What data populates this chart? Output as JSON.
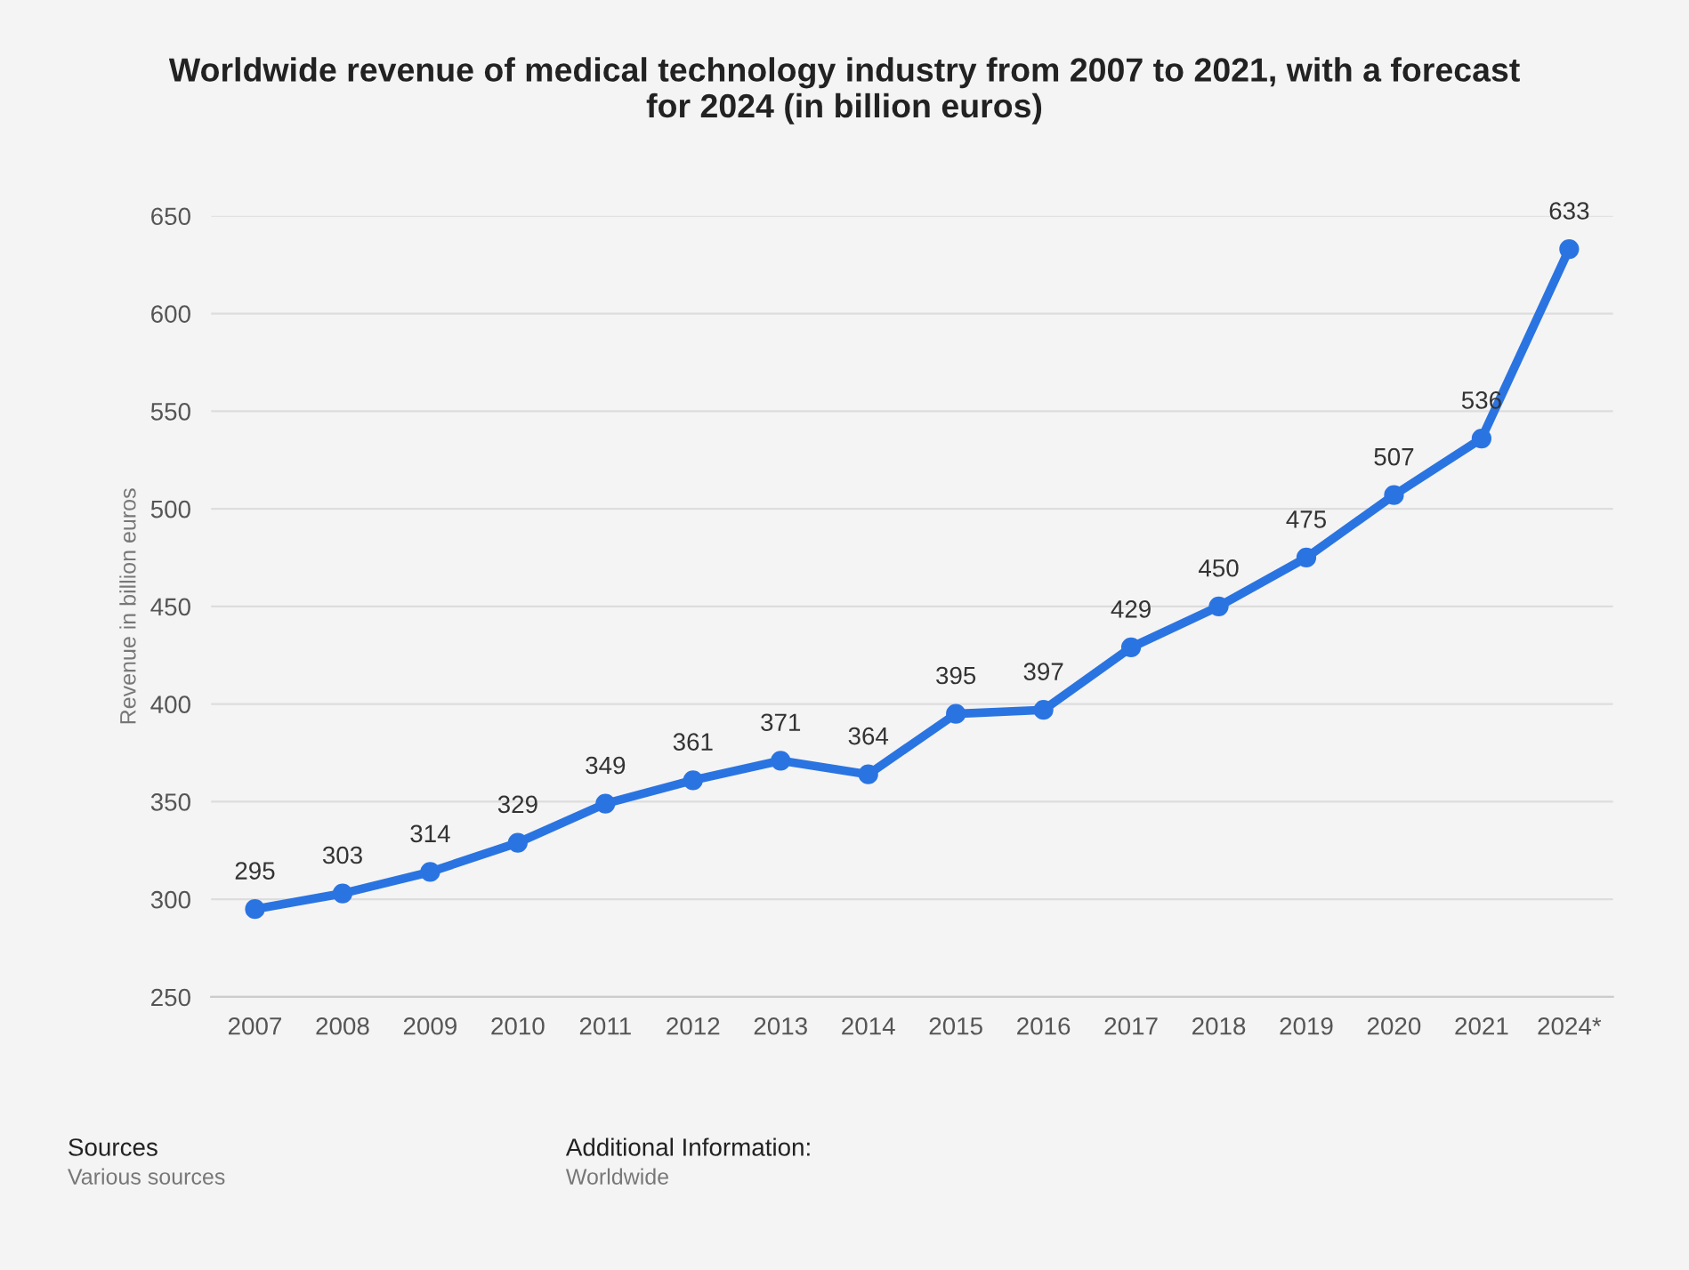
{
  "chart_data": {
    "type": "line",
    "title": "Worldwide revenue of medical technology industry from 2007 to 2021, with a forecast\nfor 2024 (in billion euros)",
    "ylabel": "Revenue in billion euros",
    "categories": [
      "2007",
      "2008",
      "2009",
      "2010",
      "2011",
      "2012",
      "2013",
      "2014",
      "2015",
      "2016",
      "2017",
      "2018",
      "2019",
      "2020",
      "2021",
      "2024*"
    ],
    "series": [
      {
        "color": "#2a74e2",
        "values": [
          295,
          303,
          314,
          329,
          349,
          361,
          371,
          364,
          395,
          397,
          429,
          450,
          475,
          507,
          536,
          633
        ]
      }
    ],
    "ylim": [
      250,
      650
    ],
    "yticks": [
      250,
      300,
      350,
      400,
      450,
      500,
      550,
      600,
      650
    ],
    "grid": "y",
    "marker": "circle",
    "line_style": "solid",
    "data_labels": true,
    "legend": false,
    "annotations": [
      "Sources",
      "Various sources",
      "Additional Information:",
      "Worldwide"
    ]
  }
}
